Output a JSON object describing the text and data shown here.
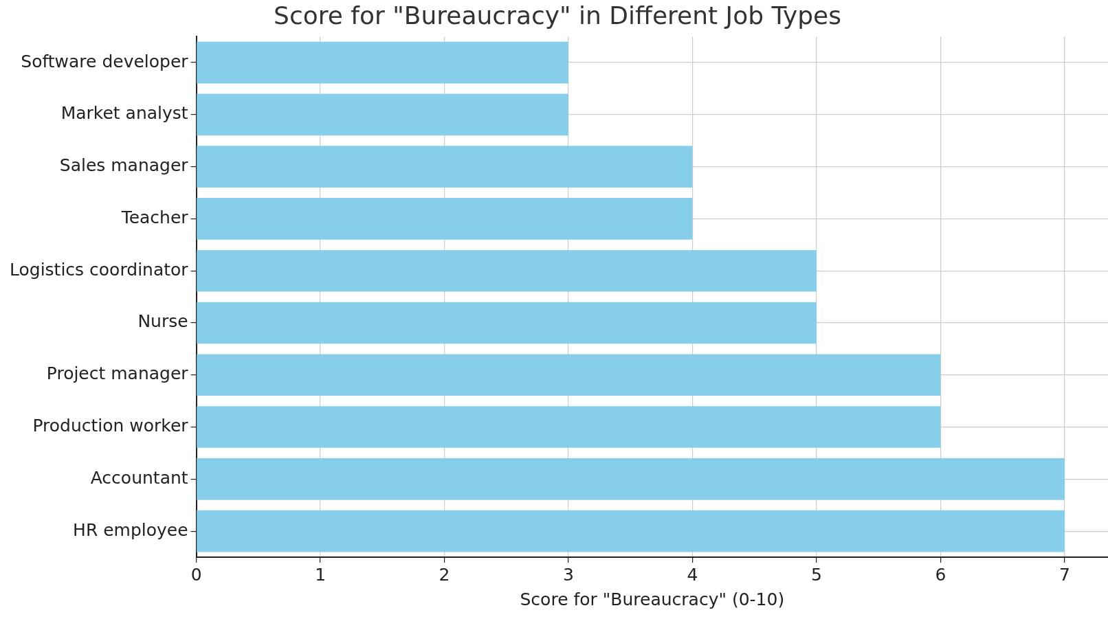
{
  "chart_data": {
    "type": "bar",
    "orientation": "horizontal",
    "title": "Score for \"Bureaucracy\" in Different Job Types",
    "xlabel": "Score for \"Bureaucracy\" (0-10)",
    "categories": [
      "Software developer",
      "Market analyst",
      "Sales manager",
      "Teacher",
      "Logistics coordinator",
      "Nurse",
      "Project manager",
      "Production worker",
      "Accountant",
      "HR employee"
    ],
    "values": [
      3,
      3,
      4,
      4,
      5,
      5,
      6,
      6,
      7,
      7
    ],
    "color": "#87ceeb",
    "xlim": [
      0,
      7.35
    ],
    "xticks": [
      0,
      1,
      2,
      3,
      4,
      5,
      6,
      7
    ],
    "grid": true
  }
}
